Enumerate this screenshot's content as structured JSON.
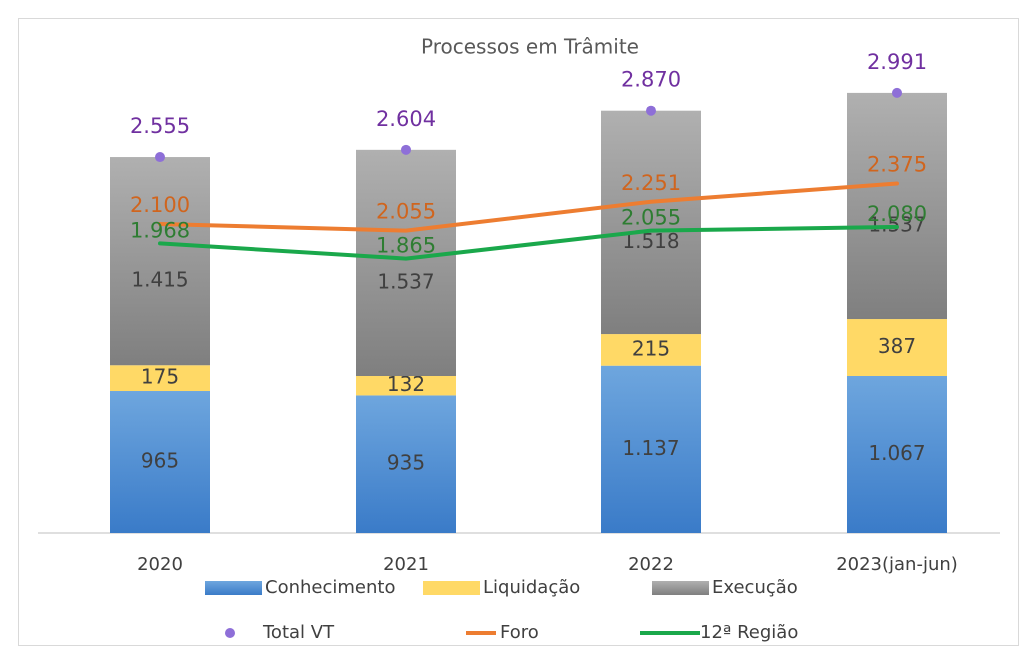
{
  "chart_data": {
    "type": "bar",
    "stacked": true,
    "title": "Processos em Trâmite",
    "categories": [
      "2020",
      "2021",
      "2022",
      "2023(jan-jun)"
    ],
    "ylim": [
      0,
      3500
    ],
    "series": [
      {
        "name": "Conhecimento",
        "type": "bar",
        "color": "#4f8fd3",
        "values": [
          965,
          935,
          1137,
          1067
        ],
        "value_labels": [
          "965",
          "935",
          "1.137",
          "1.067"
        ]
      },
      {
        "name": "Liquidação",
        "type": "bar",
        "color": "#ffd966",
        "values": [
          175,
          132,
          215,
          387
        ]
      },
      {
        "name": "Execução",
        "type": "bar",
        "color": "#999999",
        "values": [
          1415,
          1537,
          1518,
          1537
        ],
        "value_labels": [
          "1.415",
          "1.537",
          "1.518",
          "1.537"
        ]
      },
      {
        "name": "Total VT",
        "type": "scatter",
        "color": "#8e6fd8",
        "label_color": "#7030a0",
        "values": [
          2555,
          2604,
          2870,
          2991
        ],
        "value_labels": [
          "2.555",
          "2.604",
          "2.870",
          "2.991"
        ]
      },
      {
        "name": "Foro",
        "type": "line",
        "color": "#ed7d31",
        "label_color": "#d0651e",
        "values": [
          2100,
          2055,
          2251,
          2375
        ],
        "value_labels": [
          "2.100",
          "2.055",
          "2.251",
          "2.375"
        ]
      },
      {
        "name": "12ª Região",
        "type": "line",
        "color": "#1aa84b",
        "label_color": "#2e7d32",
        "values": [
          1968,
          1865,
          2055,
          2080
        ],
        "value_labels": [
          "1.968",
          "1.865",
          "2.055",
          "2.080"
        ]
      }
    ]
  }
}
